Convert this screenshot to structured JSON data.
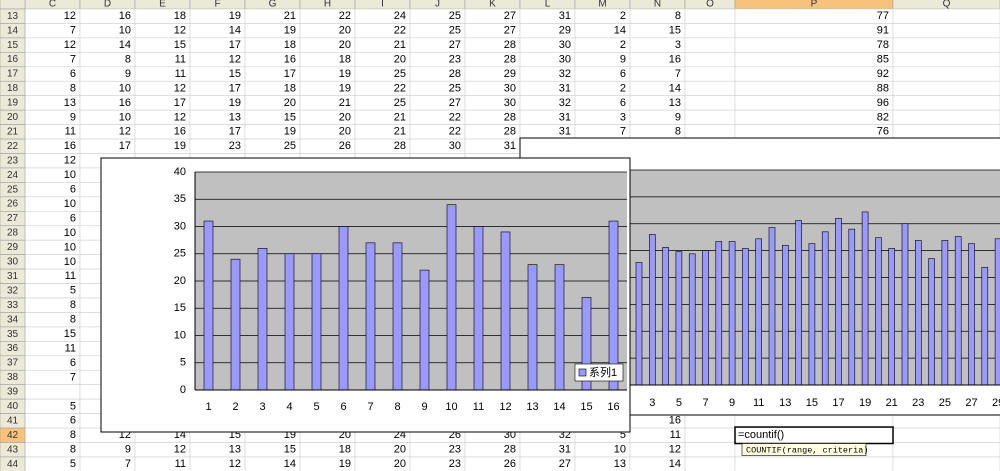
{
  "sheet": {
    "columns": [
      "C",
      "D",
      "E",
      "F",
      "G",
      "H",
      "I",
      "J",
      "K",
      "L",
      "M",
      "N",
      "O",
      "P",
      "Q"
    ],
    "active_column": "P",
    "active_row": "42",
    "rows": [
      {
        "label": "13",
        "cells": [
          12,
          16,
          18,
          19,
          21,
          22,
          24,
          25,
          27,
          31,
          2,
          8,
          null,
          77
        ]
      },
      {
        "label": "14",
        "cells": [
          7,
          10,
          12,
          14,
          19,
          20,
          22,
          25,
          27,
          29,
          14,
          15,
          null,
          91
        ]
      },
      {
        "label": "15",
        "cells": [
          12,
          14,
          15,
          17,
          18,
          20,
          21,
          27,
          28,
          30,
          2,
          3,
          null,
          78
        ]
      },
      {
        "label": "16",
        "cells": [
          7,
          8,
          11,
          12,
          16,
          18,
          20,
          23,
          28,
          30,
          9,
          16,
          null,
          85
        ]
      },
      {
        "label": "17",
        "cells": [
          6,
          9,
          11,
          15,
          17,
          19,
          25,
          28,
          29,
          32,
          6,
          7,
          null,
          92
        ]
      },
      {
        "label": "18",
        "cells": [
          8,
          10,
          12,
          17,
          18,
          19,
          22,
          25,
          30,
          31,
          2,
          14,
          null,
          88
        ]
      },
      {
        "label": "19",
        "cells": [
          13,
          16,
          17,
          19,
          20,
          21,
          25,
          27,
          30,
          32,
          6,
          13,
          null,
          96
        ]
      },
      {
        "label": "20",
        "cells": [
          9,
          10,
          12,
          13,
          15,
          20,
          21,
          22,
          28,
          31,
          3,
          9,
          null,
          82
        ]
      },
      {
        "label": "21",
        "cells": [
          11,
          12,
          16,
          17,
          19,
          20,
          21,
          22,
          28,
          31,
          7,
          8,
          null,
          76
        ]
      },
      {
        "label": "22",
        "cells": [
          16,
          17,
          19,
          23,
          25,
          26,
          28,
          30,
          31
        ]
      },
      {
        "label": "23",
        "cells": [
          12
        ]
      },
      {
        "label": "24",
        "cells": [
          10
        ]
      },
      {
        "label": "25",
        "cells": [
          6
        ]
      },
      {
        "label": "26",
        "cells": [
          10
        ]
      },
      {
        "label": "27",
        "cells": [
          6
        ]
      },
      {
        "label": "28",
        "cells": [
          10
        ]
      },
      {
        "label": "29",
        "cells": [
          10
        ]
      },
      {
        "label": "30",
        "cells": [
          10
        ]
      },
      {
        "label": "31",
        "cells": [
          11
        ]
      },
      {
        "label": "32",
        "cells": [
          5
        ]
      },
      {
        "label": "33",
        "cells": [
          8
        ]
      },
      {
        "label": "34",
        "cells": [
          8
        ]
      },
      {
        "label": "35",
        "cells": [
          15
        ]
      },
      {
        "label": "36",
        "cells": [
          11
        ]
      },
      {
        "label": "37",
        "cells": [
          6
        ]
      },
      {
        "label": "38",
        "cells": [
          7
        ]
      },
      {
        "label": "39",
        "cells": []
      },
      {
        "label": "40",
        "cells": [
          5
        ]
      },
      {
        "label": "41",
        "cells": [
          6,
          null,
          null,
          null,
          null,
          null,
          null,
          null,
          null,
          null,
          null,
          16
        ]
      },
      {
        "label": "42",
        "cells": [
          8,
          12,
          14,
          15,
          19,
          20,
          24,
          26,
          30,
          32,
          5,
          11
        ]
      },
      {
        "label": "43",
        "cells": [
          8,
          9,
          12,
          13,
          15,
          18,
          20,
          23,
          28,
          31,
          10,
          12
        ]
      },
      {
        "label": "44",
        "cells": [
          5,
          7,
          11,
          12,
          14,
          19,
          20,
          23,
          26,
          27,
          13,
          14
        ]
      }
    ],
    "active_cell": {
      "formula": "=countif()",
      "tooltip": "COUNTIF(range, criteria)"
    }
  },
  "chart_data": [
    {
      "type": "bar",
      "categories": [
        "1",
        "2",
        "3",
        "4",
        "5",
        "6",
        "7",
        "8",
        "9",
        "10",
        "11",
        "12",
        "13",
        "14",
        "15",
        "16"
      ],
      "series": [
        {
          "name": "系列1",
          "color": "#9999ff",
          "values": [
            31,
            24,
            26,
            25,
            25,
            30,
            27,
            27,
            22,
            34,
            30,
            29,
            23,
            23,
            17,
            31
          ]
        }
      ],
      "ylim": [
        0,
        40
      ],
      "yticks": [
        0,
        5,
        10,
        15,
        20,
        25,
        30,
        35,
        40
      ],
      "grid": true,
      "y_axis_labels": true,
      "legend": "right"
    },
    {
      "type": "bar",
      "categories": [
        null,
        "3",
        null,
        "5",
        null,
        "7",
        null,
        "9",
        null,
        "11",
        null,
        "13",
        null,
        "15",
        null,
        "17",
        null,
        "19",
        null,
        "21",
        null,
        "23",
        null,
        "25",
        null,
        "27",
        null,
        "29"
      ],
      "series": [
        {
          "color": "#9999ff",
          "values": [
            22.8,
            28,
            25.6,
            24.8,
            24.4,
            25,
            26.7,
            26.7,
            25.4,
            27.2,
            29.3,
            26,
            30.6,
            26.3,
            28.5,
            31,
            29,
            32.2,
            27.4,
            25.4,
            30,
            26.9,
            23.5,
            26.9,
            27.6,
            26.3,
            21.9,
            27.2
          ]
        }
      ],
      "ylim": [
        0,
        40
      ],
      "yticks": [
        0,
        5,
        10,
        15,
        20,
        25,
        30,
        35,
        40
      ],
      "grid": true,
      "y_axis_labels": false
    }
  ]
}
